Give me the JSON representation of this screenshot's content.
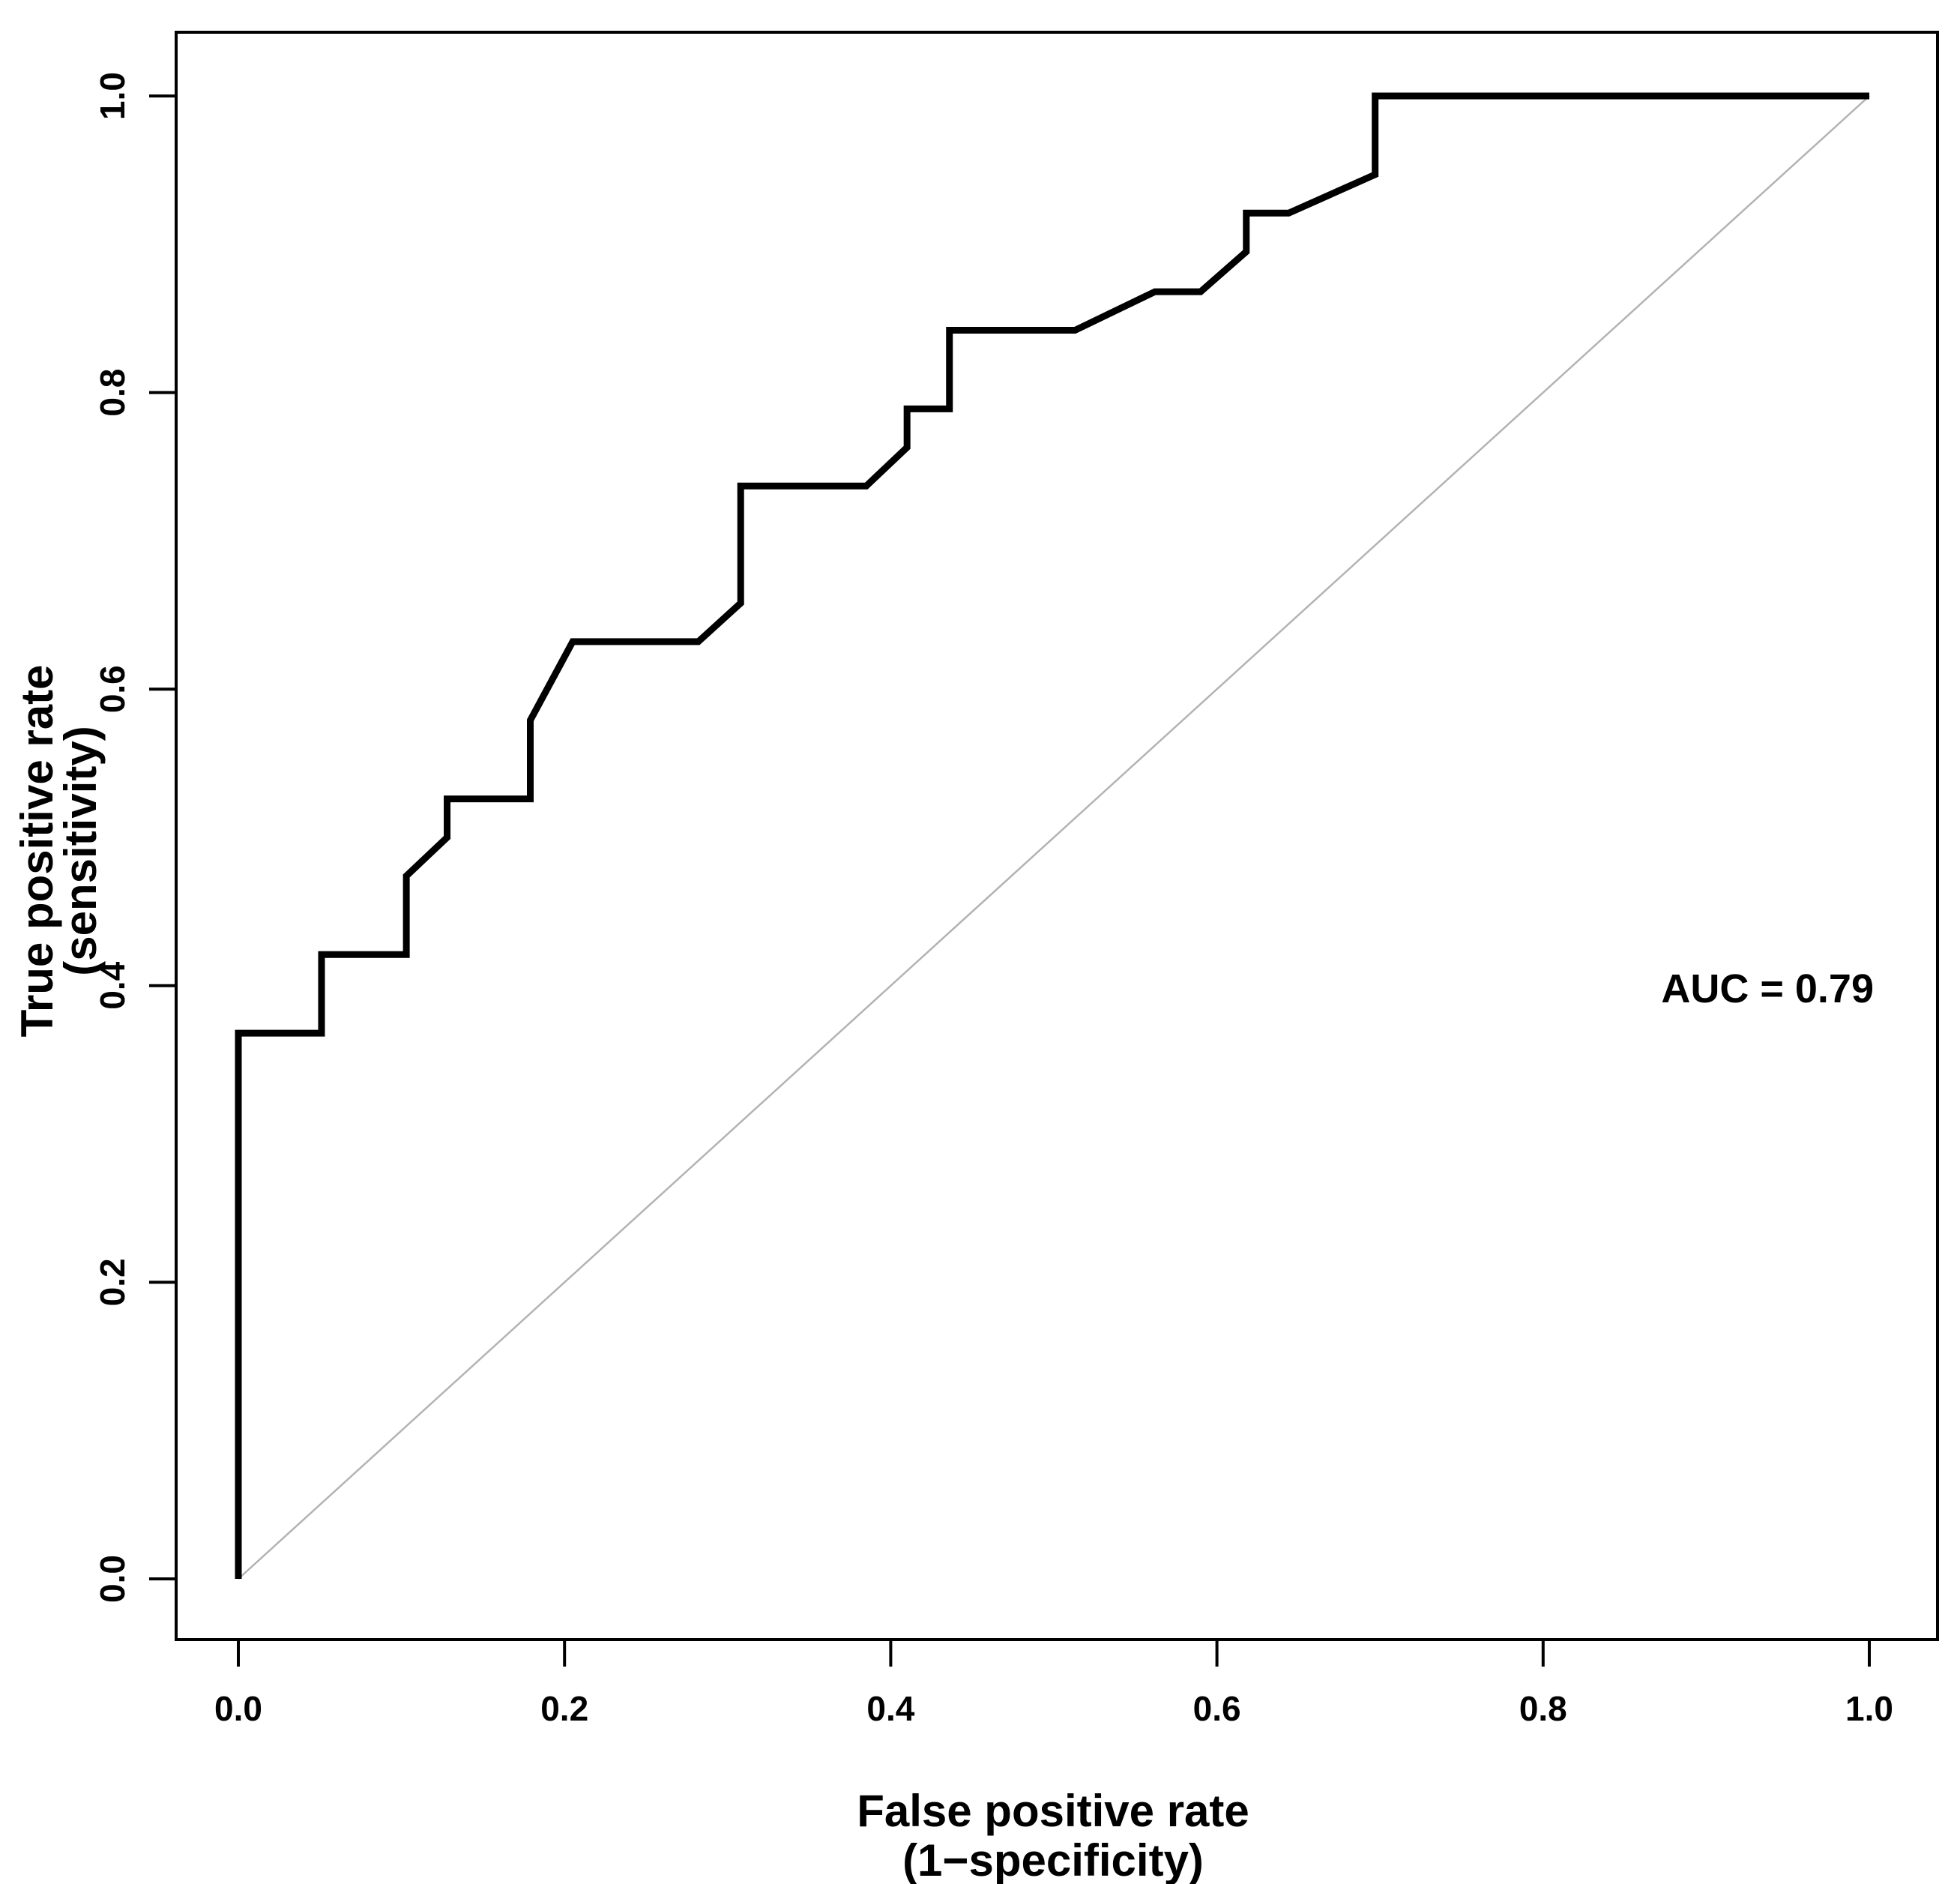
{
  "chart": {
    "xlabel_line1": "False positive rate",
    "xlabel_line2": "(1−specificity)",
    "ylabel_line1": "True positive rate",
    "ylabel_line2": "(sensitivity)",
    "auc_label": "AUC = 0.79"
  },
  "colors": {
    "curve": "#000000",
    "chance_line": "#b3b3b3",
    "axis": "#000000",
    "background": "#ffffff"
  },
  "chart_data": {
    "type": "line",
    "title": "",
    "xlabel": "False positive rate (1−specificity)",
    "ylabel": "True positive rate (sensitivity)",
    "xlim": [
      0.0,
      1.0
    ],
    "ylim": [
      0.0,
      1.0
    ],
    "x_tick_labels": [
      "0.0",
      "0.2",
      "0.4",
      "0.6",
      "0.8",
      "1.0"
    ],
    "y_tick_labels": [
      "0.0",
      "0.2",
      "0.4",
      "0.6",
      "0.8",
      "1.0"
    ],
    "x_tick_values": [
      0.0,
      0.2,
      0.4,
      0.6,
      0.8,
      1.0
    ],
    "y_tick_values": [
      0.0,
      0.2,
      0.4,
      0.6,
      0.8,
      1.0
    ],
    "grid": false,
    "legend": false,
    "auc": 0.79,
    "annotations": [
      {
        "text": "AUC = 0.79",
        "x": 0.96,
        "y": 0.39
      }
    ],
    "series": [
      {
        "name": "ROC curve",
        "style": "step",
        "color": "#000000",
        "line_width": 9,
        "points": [
          [
            0.0,
            0.0
          ],
          [
            0.0,
            0.368
          ],
          [
            0.051,
            0.368
          ],
          [
            0.051,
            0.421
          ],
          [
            0.103,
            0.421
          ],
          [
            0.103,
            0.474
          ],
          [
            0.128,
            0.5
          ],
          [
            0.128,
            0.526
          ],
          [
            0.179,
            0.526
          ],
          [
            0.179,
            0.579
          ],
          [
            0.205,
            0.632
          ],
          [
            0.282,
            0.632
          ],
          [
            0.308,
            0.658
          ],
          [
            0.308,
            0.737
          ],
          [
            0.385,
            0.737
          ],
          [
            0.41,
            0.763
          ],
          [
            0.41,
            0.789
          ],
          [
            0.436,
            0.789
          ],
          [
            0.436,
            0.842
          ],
          [
            0.513,
            0.842
          ],
          [
            0.562,
            0.868
          ],
          [
            0.59,
            0.868
          ],
          [
            0.618,
            0.895
          ],
          [
            0.618,
            0.921
          ],
          [
            0.644,
            0.921
          ],
          [
            0.697,
            0.947
          ],
          [
            0.697,
            1.0
          ],
          [
            1.0,
            1.0
          ]
        ]
      },
      {
        "name": "Chance diagonal",
        "style": "line",
        "color": "#b3b3b3",
        "line_width": 2.5,
        "points": [
          [
            0.0,
            0.0
          ],
          [
            1.0,
            1.0
          ]
        ]
      }
    ]
  }
}
